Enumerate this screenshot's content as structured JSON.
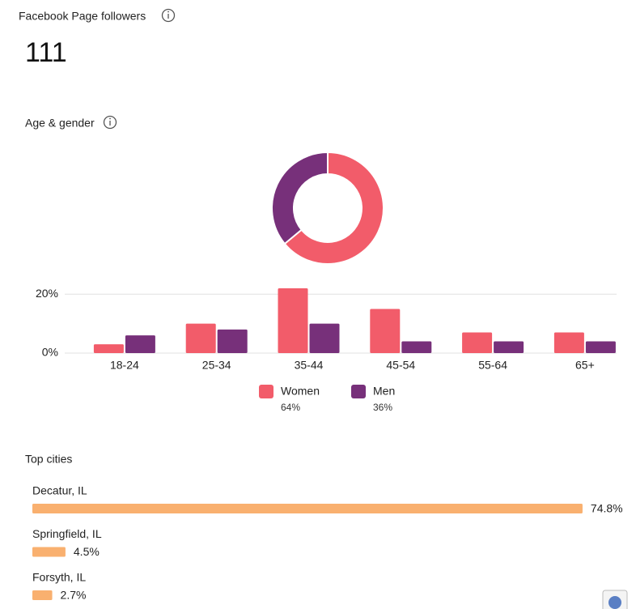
{
  "followers": {
    "title": "Facebook Page followers",
    "count": 111
  },
  "chart_data": [
    {
      "type": "bar",
      "title": "Age & gender",
      "categories": [
        "18-24",
        "25-34",
        "35-44",
        "45-54",
        "55-64",
        "65+"
      ],
      "series": [
        {
          "name": "Women",
          "color": "#f25c6a",
          "values": [
            3,
            10,
            22,
            15,
            7,
            7
          ],
          "share": 64,
          "share_label": "64%"
        },
        {
          "name": "Men",
          "color": "#77307a",
          "values": [
            6,
            8,
            10,
            4,
            4,
            4
          ],
          "share": 36,
          "share_label": "36%"
        }
      ],
      "ylim": [
        0,
        22
      ],
      "yticks": [
        {
          "value": 0,
          "label": "0%"
        },
        {
          "value": 20,
          "label": "20%"
        }
      ],
      "grid": true
    },
    {
      "type": "hbar",
      "title": "Top cities",
      "categories": [
        "Decatur, IL",
        "Springfield, IL",
        "Forsyth, IL"
      ],
      "values": [
        74.8,
        4.5,
        2.7
      ],
      "value_labels": [
        "74.8%",
        "4.5%",
        "2.7%"
      ],
      "color": "#f9b06f"
    }
  ]
}
